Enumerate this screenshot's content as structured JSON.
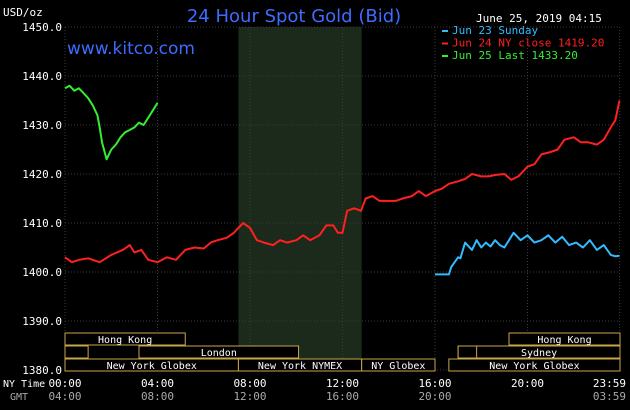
{
  "chart_data": {
    "type": "line",
    "title": "24 Hour Spot Gold (Bid)",
    "source": "www.kitco.com",
    "timestamp": "June 25, 2019 04:15",
    "unit": "USD/oz",
    "ylim": [
      1380,
      1450
    ],
    "y_ticks": [
      "1450.0",
      "1440.0",
      "1430.0",
      "1420.0",
      "1410.0",
      "1400.0",
      "1390.0",
      "1380.0"
    ],
    "y_tick_values": [
      1450,
      1440,
      1430,
      1420,
      1410,
      1400,
      1390,
      1380
    ],
    "x_ticks_ny": [
      "00:00",
      "04:00",
      "08:00",
      "12:00",
      "16:00",
      "20:00",
      "23:59"
    ],
    "x_ticks_gmt": [
      "04:00",
      "08:00",
      "12:00",
      "16:00",
      "20:00",
      "",
      "03:59"
    ],
    "x_tick_hours": [
      0,
      4,
      8,
      12,
      16,
      20,
      23.983
    ],
    "x_label_ny": "NY Time",
    "x_label_gmt": "GMT",
    "legend": [
      {
        "label": "Jun 23 Sunday",
        "color": "#33bbff"
      },
      {
        "label": "Jun 24 NY close 1419.20",
        "color": "#ff2020"
      },
      {
        "label": "Jun 25 Last 1433.20",
        "color": "#33ee33"
      }
    ],
    "shaded_hours": [
      7.5,
      12.83
    ],
    "series": [
      {
        "name": "Jun 23 Sunday",
        "color": "#33bbff",
        "x": [
          16.0,
          16.6,
          16.7,
          17.0,
          17.1,
          17.3,
          17.6,
          17.8,
          18.0,
          18.2,
          18.4,
          18.6,
          18.8,
          19.0,
          19.2,
          19.4,
          19.7,
          20.0,
          20.3,
          20.6,
          20.9,
          21.2,
          21.5,
          21.8,
          22.1,
          22.4,
          22.7,
          23.0,
          23.3,
          23.6,
          23.8,
          23.98
        ],
        "y": [
          1399.5,
          1399.5,
          1401.0,
          1403.0,
          1402.8,
          1406.0,
          1404.5,
          1406.5,
          1405.0,
          1406.0,
          1405.2,
          1406.5,
          1405.5,
          1405.0,
          1406.5,
          1408.0,
          1406.5,
          1407.5,
          1406.0,
          1406.5,
          1407.5,
          1406.0,
          1407.2,
          1405.5,
          1406.0,
          1405.0,
          1406.5,
          1404.5,
          1405.5,
          1403.5,
          1403.2,
          1403.3
        ]
      },
      {
        "name": "Jun 24 NY close 1419.20",
        "color": "#ff2020",
        "x": [
          0.0,
          0.3,
          0.6,
          1.0,
          1.5,
          2.0,
          2.5,
          2.8,
          3.0,
          3.3,
          3.6,
          4.0,
          4.4,
          4.8,
          5.2,
          5.6,
          6.0,
          6.3,
          6.6,
          7.0,
          7.3,
          7.5,
          7.7,
          8.0,
          8.3,
          8.6,
          9.0,
          9.3,
          9.6,
          10.0,
          10.3,
          10.6,
          11.0,
          11.3,
          11.6,
          11.8,
          12.0,
          12.2,
          12.5,
          12.8,
          13.0,
          13.3,
          13.6,
          14.0,
          14.3,
          14.6,
          15.0,
          15.3,
          15.6,
          16.0,
          16.3,
          16.6,
          17.0,
          17.3,
          17.6,
          18.0,
          18.3,
          18.6,
          19.0,
          19.3,
          19.6,
          20.0,
          20.3,
          20.6,
          21.0,
          21.3,
          21.6,
          22.0,
          22.3,
          22.6,
          23.0,
          23.3,
          23.6,
          23.8,
          23.98
        ],
        "y": [
          1403.0,
          1402.0,
          1402.5,
          1402.8,
          1402.0,
          1403.5,
          1404.5,
          1405.5,
          1404.0,
          1404.5,
          1402.5,
          1402.0,
          1403.0,
          1402.5,
          1404.5,
          1405.0,
          1404.8,
          1406.0,
          1406.5,
          1407.0,
          1408.0,
          1409.0,
          1410.0,
          1409.0,
          1406.5,
          1406.0,
          1405.5,
          1406.5,
          1406.0,
          1406.5,
          1407.5,
          1406.5,
          1407.5,
          1409.5,
          1409.5,
          1408.0,
          1408.0,
          1412.5,
          1413.0,
          1412.5,
          1415.0,
          1415.5,
          1414.5,
          1414.5,
          1414.5,
          1415.0,
          1415.5,
          1416.5,
          1415.5,
          1416.5,
          1417.0,
          1418.0,
          1418.5,
          1419.0,
          1420.0,
          1419.5,
          1419.5,
          1419.8,
          1420.0,
          1418.8,
          1419.5,
          1421.5,
          1422.0,
          1424.0,
          1424.5,
          1425.0,
          1427.0,
          1427.5,
          1426.5,
          1426.5,
          1426.0,
          1427.0,
          1429.5,
          1431.0,
          1435.0
        ]
      },
      {
        "name": "Jun 25 Last 1433.20",
        "color": "#33ee33",
        "x": [
          0.0,
          0.2,
          0.4,
          0.6,
          0.8,
          1.0,
          1.2,
          1.4,
          1.5,
          1.6,
          1.8,
          2.0,
          2.2,
          2.4,
          2.6,
          2.8,
          3.0,
          3.2,
          3.4,
          3.6,
          3.8,
          4.0
        ],
        "y": [
          1437.5,
          1438.0,
          1437.0,
          1437.5,
          1436.5,
          1435.5,
          1434.0,
          1432.0,
          1429.5,
          1426.5,
          1423.0,
          1425.0,
          1426.0,
          1427.5,
          1428.5,
          1429.0,
          1429.5,
          1430.5,
          1430.0,
          1431.5,
          1433.0,
          1434.5
        ]
      }
    ],
    "sessions": [
      {
        "label": "Hong Kong",
        "row": 0,
        "start": 0,
        "end": 5.2
      },
      {
        "label": "",
        "row": 1,
        "start": 0,
        "end": 1.0
      },
      {
        "label": "London",
        "row": 1,
        "start": 3.2,
        "end": 10.1
      },
      {
        "label": "New York Globex",
        "row": 2,
        "start": 0,
        "end": 7.5
      },
      {
        "label": "New York NYMEX",
        "row": 2,
        "start": 7.5,
        "end": 12.83
      },
      {
        "label": "NY Globex",
        "row": 2,
        "start": 12.83,
        "end": 16.0
      },
      {
        "label": "Hong Kong",
        "row": 0,
        "start": 19.2,
        "end": 24.0
      },
      {
        "label": "Sydney",
        "row": 1,
        "start": 17.0,
        "end": 24.0
      },
      {
        "label": "",
        "row": 1,
        "start": 17.0,
        "end": 17.8
      },
      {
        "label": "New York Globex",
        "row": 2,
        "start": 16.6,
        "end": 24.0
      }
    ]
  }
}
